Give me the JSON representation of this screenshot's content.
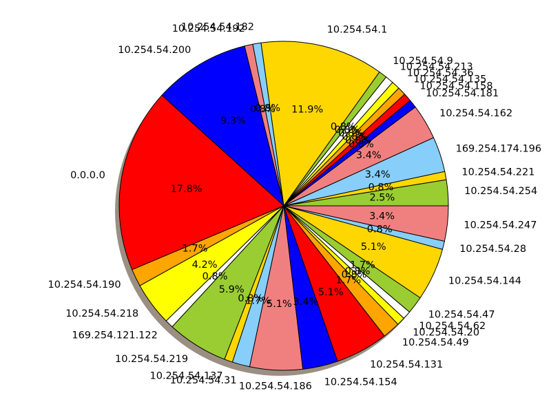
{
  "chart_data": {
    "type": "pie",
    "title": "",
    "shadow": true,
    "start_angle_deg": 0,
    "direction": "counterclockwise",
    "slices": [
      {
        "label": "10.254.54.254",
        "value": 2.5,
        "pct_label": "2.5%",
        "color": "#9acd32"
      },
      {
        "label": "10.254.54.221",
        "value": 0.8,
        "pct_label": "0.8%",
        "color": "#ffd700"
      },
      {
        "label": "169.254.174.196",
        "value": 3.4,
        "pct_label": "3.4%",
        "color": "#87cefa"
      },
      {
        "label": "10.254.54.162",
        "value": 3.4,
        "pct_label": "3.4%",
        "color": "#f08080"
      },
      {
        "label": "10.254.54.181",
        "value": 0.8,
        "pct_label": "0.8%",
        "color": "#0000ff"
      },
      {
        "label": "10.254.54.158",
        "value": 0.8,
        "pct_label": "0.8%",
        "color": "#ff0000"
      },
      {
        "label": "10.254.54.135",
        "value": 0.8,
        "pct_label": "0.8%",
        "color": "#ffa500"
      },
      {
        "label": "10.254.54.36",
        "value": 0.8,
        "pct_label": "0.8%",
        "color": "#ffff00"
      },
      {
        "label": "10.254.54.213",
        "value": 0.8,
        "pct_label": "0.8%",
        "color": "#ffffff"
      },
      {
        "label": "10.254.54.9",
        "value": 0.8,
        "pct_label": "0.8%",
        "color": "#9acd32"
      },
      {
        "label": "10.254.54.1",
        "value": 11.9,
        "pct_label": "11.9%",
        "color": "#ffd700"
      },
      {
        "label": "10.254.54.182",
        "value": 0.8,
        "pct_label": "0.8%",
        "color": "#87cefa"
      },
      {
        "label": "10.254.54.192",
        "value": 0.8,
        "pct_label": "0.8%",
        "color": "#f08080"
      },
      {
        "label": "10.254.54.200",
        "value": 9.3,
        "pct_label": "9.3%",
        "color": "#0000ff"
      },
      {
        "label": "0.0.0.0",
        "value": 17.8,
        "pct_label": "17.8%",
        "color": "#ff0000"
      },
      {
        "label": "10.254.54.190",
        "value": 1.7,
        "pct_label": "1.7%",
        "color": "#ffa500"
      },
      {
        "label": "10.254.54.218",
        "value": 4.2,
        "pct_label": "4.2%",
        "color": "#ffff00"
      },
      {
        "label": "169.254.121.122",
        "value": 0.8,
        "pct_label": "0.8%",
        "color": "#ffffff"
      },
      {
        "label": "10.254.54.219",
        "value": 5.9,
        "pct_label": "5.9%",
        "color": "#9acd32"
      },
      {
        "label": "10.254.54.137",
        "value": 0.8,
        "pct_label": "0.8%",
        "color": "#ffd700"
      },
      {
        "label": "10.254.54.31",
        "value": 1.7,
        "pct_label": "1.7%",
        "color": "#87cefa"
      },
      {
        "label": "10.254.54.186",
        "value": 5.1,
        "pct_label": "5.1%",
        "color": "#f08080"
      },
      {
        "label": "10.254.54.154",
        "value": 3.4,
        "pct_label": "3.4%",
        "color": "#0000ff"
      },
      {
        "label": "10.254.54.131",
        "value": 5.1,
        "pct_label": "5.1%",
        "color": "#ff0000"
      },
      {
        "label": "10.254.54.49",
        "value": 1.7,
        "pct_label": "1.7%",
        "color": "#ffa500"
      },
      {
        "label": "10.254.54.20",
        "value": 0.8,
        "pct_label": "0.8%",
        "color": "#ffff00"
      },
      {
        "label": "10.254.54.62",
        "value": 0.8,
        "pct_label": "0.8%",
        "color": "#ffffff"
      },
      {
        "label": "10.254.54.47",
        "value": 1.7,
        "pct_label": "1.7%",
        "color": "#9acd32"
      },
      {
        "label": "10.254.54.144",
        "value": 5.1,
        "pct_label": "5.1%",
        "color": "#ffd700"
      },
      {
        "label": "10.254.54.28",
        "value": 0.8,
        "pct_label": "0.8%",
        "color": "#87cefa"
      },
      {
        "label": "10.254.54.247",
        "value": 3.4,
        "pct_label": "3.4%",
        "color": "#f08080"
      }
    ]
  }
}
